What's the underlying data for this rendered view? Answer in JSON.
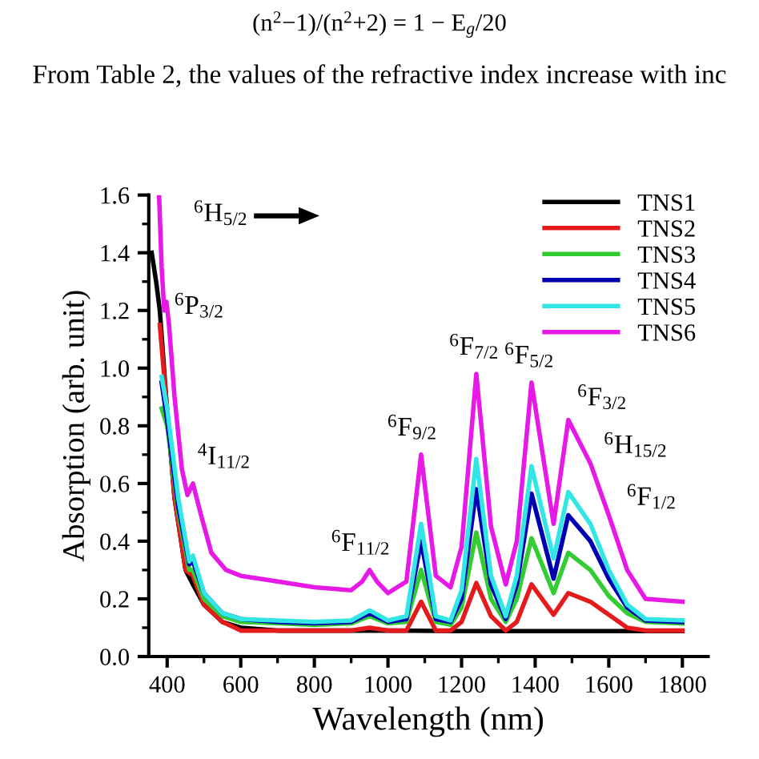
{
  "chart_data": {
    "type": "line",
    "xlabel": "Wavelength (nm)",
    "ylabel": "Absorption (arb. unit)",
    "xlim": [
      350,
      1870
    ],
    "xticks": [
      400,
      600,
      800,
      1000,
      1200,
      1400,
      1600,
      1800
    ],
    "ylim": [
      0,
      1.6
    ],
    "yticks": [
      {
        "value": 0,
        "label": "0.0"
      },
      0.2,
      0.4,
      0.6,
      0.8,
      {
        "value": 1,
        "label": "1.0"
      },
      1.2,
      1.4,
      1.6
    ],
    "grid": false,
    "legend": "top right",
    "line_style": "solid",
    "marker": "none",
    "series": [
      {
        "name": "TNS1",
        "color": "#000000",
        "x": [
          358,
          370,
          380,
          400,
          420,
          450,
          470,
          500,
          550,
          600,
          700,
          800,
          1000,
          1200,
          1400,
          1600,
          1800
        ],
        "values": [
          1.4,
          1.3,
          1.2,
          0.85,
          0.55,
          0.3,
          0.25,
          0.18,
          0.12,
          0.1,
          0.09,
          0.09,
          0.09,
          0.088,
          0.088,
          0.088,
          0.088
        ]
      },
      {
        "name": "TNS2",
        "color": "#e41a1c",
        "x": [
          380,
          400,
          420,
          450,
          470,
          500,
          550,
          600,
          700,
          800,
          900,
          950,
          1000,
          1050,
          1090,
          1130,
          1170,
          1200,
          1240,
          1280,
          1320,
          1350,
          1390,
          1450,
          1490,
          1550,
          1600,
          1650,
          1700,
          1800
        ],
        "values": [
          1.15,
          0.85,
          0.55,
          0.3,
          0.28,
          0.18,
          0.12,
          0.09,
          0.09,
          0.09,
          0.09,
          0.1,
          0.09,
          0.09,
          0.19,
          0.09,
          0.09,
          0.12,
          0.255,
          0.14,
          0.09,
          0.12,
          0.25,
          0.145,
          0.22,
          0.19,
          0.145,
          0.1,
          0.09,
          0.09
        ]
      },
      {
        "name": "TNS3",
        "color": "#33cc33",
        "x": [
          385,
          400,
          430,
          460,
          470,
          500,
          550,
          600,
          700,
          800,
          900,
          950,
          1000,
          1050,
          1090,
          1130,
          1170,
          1200,
          1240,
          1280,
          1320,
          1350,
          1390,
          1450,
          1490,
          1550,
          1600,
          1650,
          1700,
          1800
        ],
        "values": [
          0.86,
          0.8,
          0.5,
          0.3,
          0.3,
          0.2,
          0.14,
          0.12,
          0.115,
          0.11,
          0.115,
          0.14,
          0.115,
          0.12,
          0.3,
          0.12,
          0.11,
          0.17,
          0.43,
          0.2,
          0.12,
          0.2,
          0.41,
          0.22,
          0.36,
          0.3,
          0.21,
          0.15,
          0.12,
          0.115
        ]
      },
      {
        "name": "TNS4",
        "color": "#0000b3",
        "x": [
          385,
          400,
          430,
          460,
          470,
          500,
          550,
          600,
          700,
          800,
          900,
          950,
          1000,
          1050,
          1090,
          1130,
          1170,
          1200,
          1240,
          1280,
          1320,
          1350,
          1390,
          1450,
          1490,
          1550,
          1600,
          1650,
          1700,
          1800
        ],
        "values": [
          0.95,
          0.82,
          0.52,
          0.32,
          0.33,
          0.22,
          0.15,
          0.13,
          0.12,
          0.115,
          0.12,
          0.15,
          0.12,
          0.13,
          0.4,
          0.13,
          0.12,
          0.2,
          0.58,
          0.25,
          0.13,
          0.25,
          0.565,
          0.27,
          0.49,
          0.4,
          0.27,
          0.17,
          0.125,
          0.12
        ]
      },
      {
        "name": "TNS5",
        "color": "#33e6e6",
        "x": [
          385,
          400,
          430,
          460,
          470,
          500,
          550,
          600,
          700,
          800,
          900,
          950,
          1000,
          1050,
          1090,
          1130,
          1170,
          1200,
          1240,
          1280,
          1320,
          1350,
          1390,
          1450,
          1490,
          1550,
          1600,
          1650,
          1700,
          1800
        ],
        "values": [
          0.97,
          0.86,
          0.55,
          0.33,
          0.35,
          0.22,
          0.15,
          0.13,
          0.125,
          0.12,
          0.125,
          0.16,
          0.125,
          0.14,
          0.46,
          0.14,
          0.125,
          0.23,
          0.685,
          0.28,
          0.14,
          0.28,
          0.66,
          0.34,
          0.57,
          0.46,
          0.3,
          0.18,
          0.13,
          0.125
        ]
      },
      {
        "name": "TNS6",
        "color": "#e619e6",
        "x": [
          378,
          385,
          392,
          398,
          405,
          420,
          440,
          455,
          470,
          490,
          520,
          560,
          600,
          700,
          800,
          900,
          930,
          950,
          970,
          1000,
          1050,
          1090,
          1130,
          1170,
          1200,
          1240,
          1280,
          1320,
          1350,
          1390,
          1450,
          1490,
          1550,
          1600,
          1650,
          1700,
          1800
        ],
        "values": [
          1.6,
          1.35,
          1.2,
          1.23,
          1.15,
          0.9,
          0.65,
          0.56,
          0.6,
          0.5,
          0.36,
          0.3,
          0.28,
          0.26,
          0.24,
          0.23,
          0.26,
          0.3,
          0.26,
          0.22,
          0.26,
          0.7,
          0.28,
          0.24,
          0.38,
          0.98,
          0.45,
          0.25,
          0.4,
          0.95,
          0.46,
          0.82,
          0.67,
          0.49,
          0.3,
          0.2,
          0.19
        ]
      }
    ],
    "annotations": [
      "(n$^{2}$−1)/(n$^{2}$+2) = 1 − E$_{g}$/20",
      "From Table 2, the values of the refractive index increase with inc",
      "$^{6}$H$_{5/2}$",
      {
        "text": "$^{6}$P$_{3/2}$",
        "x": 395,
        "y": 1.23
      },
      {
        "text": "$^{4}$I$_{11/2}$",
        "x": 470,
        "y": 0.6
      },
      {
        "text": "$^{6}$F$_{11/2}$",
        "x": 950,
        "y": 0.3
      },
      {
        "text": "$^{6}$F$_{9/2}$",
        "x": 1090,
        "y": 0.7
      },
      {
        "text": "$^{6}$F$_{7/2}$",
        "x": 1240,
        "y": 0.98
      },
      {
        "text": "$^{6}$F$_{5/2}$",
        "x": 1390,
        "y": 0.95
      },
      {
        "text": "$^{6}$F$_{3/2}$",
        "x": 1490,
        "y": 0.82
      },
      {
        "text": "$^{6}$H$_{15/2}$",
        "x": 1550,
        "y": 0.67
      },
      {
        "text": "$^{6}$F$_{1/2}$",
        "x": 1600,
        "y": 0.49
      }
    ]
  }
}
